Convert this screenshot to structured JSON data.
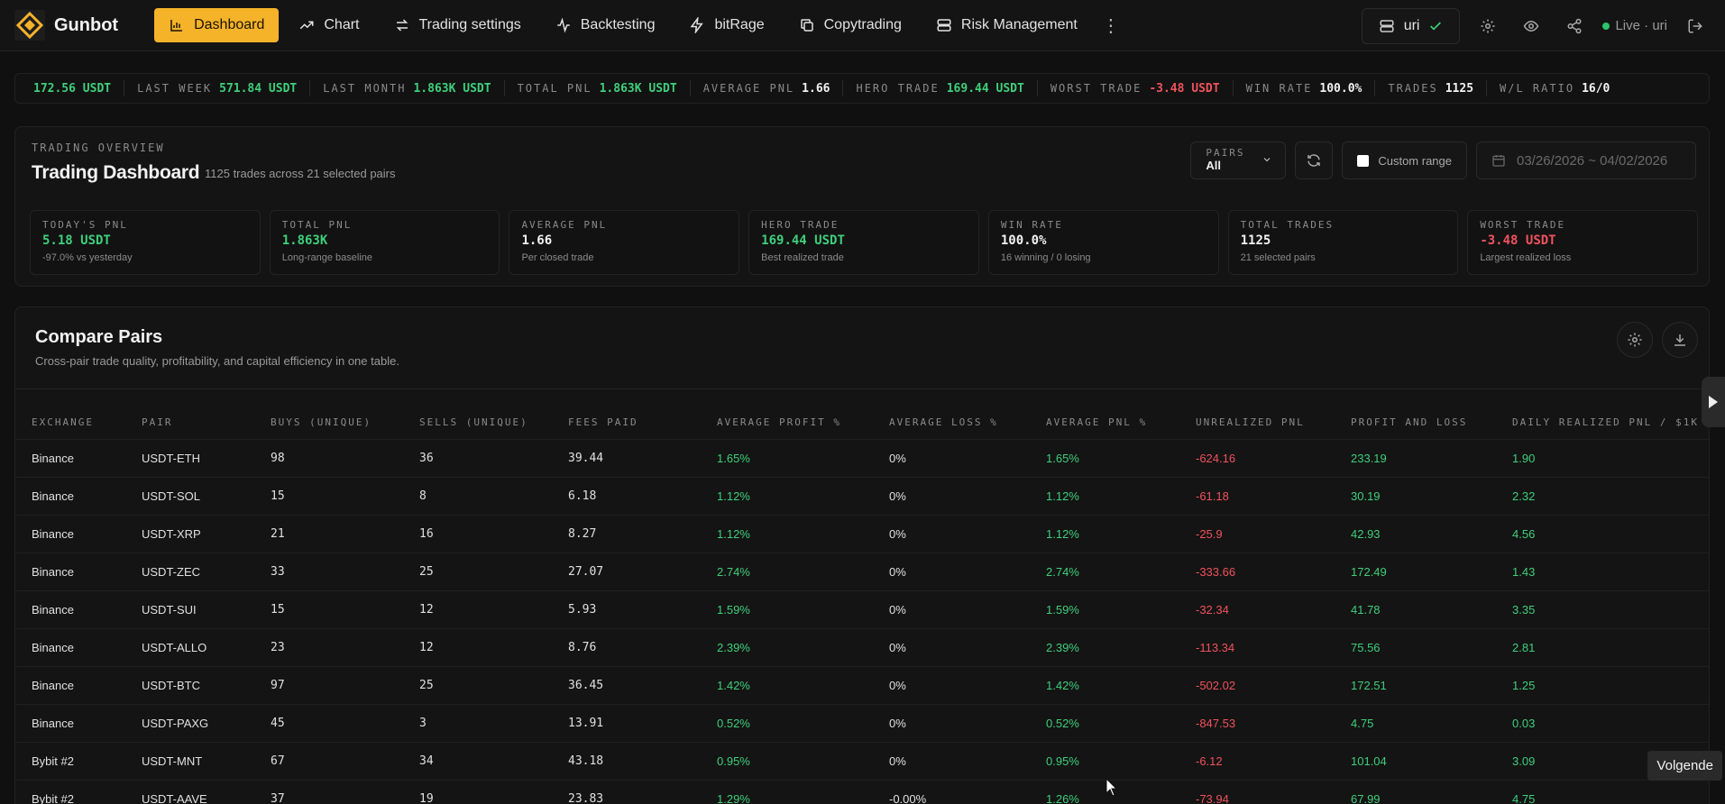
{
  "app": {
    "name": "Gunbot",
    "accent_color": "#f5b32a"
  },
  "nav": {
    "items": [
      {
        "label": "Dashboard",
        "icon": "bar-chart-icon",
        "active": true
      },
      {
        "label": "Chart",
        "icon": "trending-up-icon"
      },
      {
        "label": "Trading settings",
        "icon": "arrows-exchange-icon"
      },
      {
        "label": "Backtesting",
        "icon": "activity-icon"
      },
      {
        "label": "bitRage",
        "icon": "lightning-icon"
      },
      {
        "label": "Copytrading",
        "icon": "copy-icon"
      },
      {
        "label": "Risk Management",
        "icon": "server-icon"
      }
    ],
    "more_icon": "more-vertical-icon"
  },
  "topright": {
    "user": "uri",
    "status": "Live · uri"
  },
  "ticker": {
    "first_value": "172.56 USDT",
    "items": [
      {
        "label": "LAST WEEK",
        "value": "571.84 USDT",
        "color": "green"
      },
      {
        "label": "LAST MONTH",
        "value": "1.863K USDT",
        "color": "green"
      },
      {
        "label": "TOTAL PNL",
        "value": "1.863K USDT",
        "color": "green"
      },
      {
        "label": "AVERAGE PNL",
        "value": "1.66",
        "color": "white"
      },
      {
        "label": "HERO TRADE",
        "value": "169.44 USDT",
        "color": "green"
      },
      {
        "label": "WORST TRADE",
        "value": "-3.48 USDT",
        "color": "red"
      },
      {
        "label": "WIN RATE",
        "value": "100.0%",
        "color": "white"
      },
      {
        "label": "TRADES",
        "value": "1125",
        "color": "white"
      },
      {
        "label": "W/L RATIO",
        "value": "16/0",
        "color": "white"
      }
    ]
  },
  "overview": {
    "kicker": "TRADING OVERVIEW",
    "title": "Trading Dashboard",
    "subtitle": "1125 trades across 21 selected pairs",
    "pairs_label": "PAIRS",
    "pairs_value": "All",
    "custom_range_label": "Custom range",
    "date_range": "03/26/2026 ~ 04/02/2026",
    "stats": [
      {
        "label": "TODAY'S PNL",
        "value": "5.18 USDT",
        "note": "-97.0% vs yesterday",
        "color": "green"
      },
      {
        "label": "TOTAL PNL",
        "value": "1.863K",
        "note": "Long-range baseline",
        "color": "green"
      },
      {
        "label": "AVERAGE PNL",
        "value": "1.66",
        "note": "Per closed trade",
        "color": "white"
      },
      {
        "label": "HERO TRADE",
        "value": "169.44 USDT",
        "note": "Best realized trade",
        "color": "green"
      },
      {
        "label": "WIN RATE",
        "value": "100.0%",
        "note": "16 winning / 0 losing",
        "color": "white"
      },
      {
        "label": "TOTAL TRADES",
        "value": "1125",
        "note": "21 selected pairs",
        "color": "white"
      },
      {
        "label": "WORST TRADE",
        "value": "-3.48 USDT",
        "note": "Largest realized loss",
        "color": "red"
      }
    ]
  },
  "compare": {
    "title": "Compare Pairs",
    "subtitle": "Cross-pair trade quality, profitability, and capital efficiency in one table.",
    "columns": [
      "EXCHANGE",
      "PAIR",
      "BUYS (UNIQUE)",
      "SELLS (UNIQUE)",
      "FEES PAID",
      "AVERAGE PROFIT %",
      "AVERAGE LOSS %",
      "AVERAGE PNL %",
      "UNREALIZED PNL",
      "PROFIT AND LOSS",
      "DAILY REALIZED PNL / $1K"
    ],
    "rows": [
      [
        "Binance",
        "USDT-ETH",
        "98",
        "36",
        "39.44",
        "1.65%",
        "0%",
        "1.65%",
        "-624.16",
        "233.19",
        "1.90"
      ],
      [
        "Binance",
        "USDT-SOL",
        "15",
        "8",
        "6.18",
        "1.12%",
        "0%",
        "1.12%",
        "-61.18",
        "30.19",
        "2.32"
      ],
      [
        "Binance",
        "USDT-XRP",
        "21",
        "16",
        "8.27",
        "1.12%",
        "0%",
        "1.12%",
        "-25.9",
        "42.93",
        "4.56"
      ],
      [
        "Binance",
        "USDT-ZEC",
        "33",
        "25",
        "27.07",
        "2.74%",
        "0%",
        "2.74%",
        "-333.66",
        "172.49",
        "1.43"
      ],
      [
        "Binance",
        "USDT-SUI",
        "15",
        "12",
        "5.93",
        "1.59%",
        "0%",
        "1.59%",
        "-32.34",
        "41.78",
        "3.35"
      ],
      [
        "Binance",
        "USDT-ALLO",
        "23",
        "12",
        "8.76",
        "2.39%",
        "0%",
        "2.39%",
        "-113.34",
        "75.56",
        "2.81"
      ],
      [
        "Binance",
        "USDT-BTC",
        "97",
        "25",
        "36.45",
        "1.42%",
        "0%",
        "1.42%",
        "-502.02",
        "172.51",
        "1.25"
      ],
      [
        "Binance",
        "USDT-PAXG",
        "45",
        "3",
        "13.91",
        "0.52%",
        "0%",
        "0.52%",
        "-847.53",
        "4.75",
        "0.03"
      ],
      [
        "Bybit #2",
        "USDT-MNT",
        "67",
        "34",
        "43.18",
        "0.95%",
        "0%",
        "0.95%",
        "-6.12",
        "101.04",
        "3.09"
      ],
      [
        "Bybit #2",
        "USDT-AAVE",
        "37",
        "19",
        "23.83",
        "1.29%",
        "-0.00%",
        "1.26%",
        "-73.94",
        "67.99",
        "4.75"
      ]
    ]
  },
  "tooltip": "Volgende"
}
